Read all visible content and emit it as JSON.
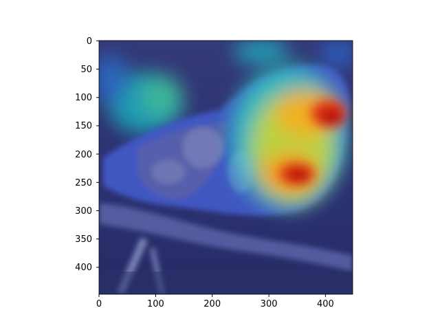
{
  "figure": {
    "description_none": "",
    "image_alt": "Grad-CAM heatmap overlay on photo of a small bird perched on a branch",
    "x_ticks": [
      "0",
      "100",
      "200",
      "300",
      "400"
    ],
    "y_ticks": [
      "0",
      "50",
      "100",
      "150",
      "200",
      "250",
      "300",
      "350",
      "400"
    ],
    "x_range": [
      0,
      448
    ],
    "y_range": [
      0,
      448
    ],
    "colors": {
      "background": "#2a2f66",
      "cool": "#3545b8",
      "teal": "#2ec4c0",
      "yellow": "#e8d12a",
      "hot": "#d01818"
    }
  }
}
